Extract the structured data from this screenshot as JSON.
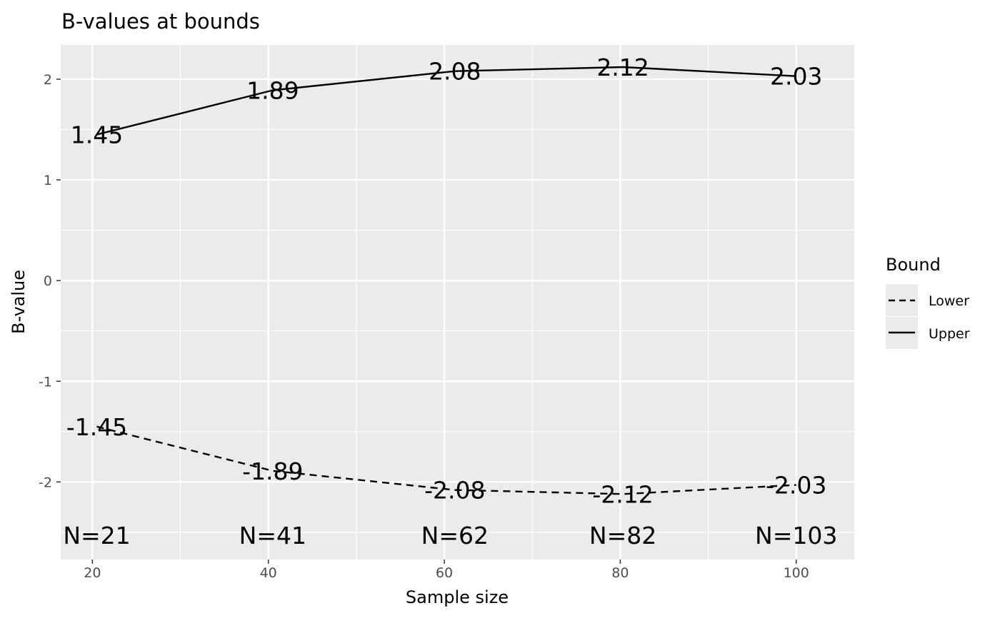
{
  "chart_data": {
    "type": "line",
    "title": "B-values at bounds",
    "xlabel": "Sample size",
    "ylabel": "B-value",
    "xlim": [
      16.4,
      106.6
    ],
    "ylim": [
      -2.77,
      2.34
    ],
    "x_ticks": [
      20,
      40,
      60,
      80,
      100
    ],
    "x_tick_labels": [
      "20",
      "40",
      "60",
      "80",
      "100"
    ],
    "y_ticks": [
      2,
      1,
      0,
      -1,
      -2
    ],
    "y_tick_labels": [
      "2",
      "1",
      "0",
      "-1",
      "-2"
    ],
    "grid": true,
    "background": "#ebebeb",
    "legend": {
      "title": "Bound",
      "position": "right",
      "entries": [
        {
          "label": "Lower",
          "linetype": "dashed"
        },
        {
          "label": "Upper",
          "linetype": "solid"
        }
      ]
    },
    "series": [
      {
        "name": "Lower",
        "linetype": "dashed",
        "color": "#000000",
        "x": [
          20.5,
          40.5,
          61.2,
          80.3,
          100.0
        ],
        "y": [
          -1.45,
          -1.89,
          -2.08,
          -2.12,
          -2.03
        ],
        "labels": [
          "-1.45",
          "-1.89",
          "-2.08",
          "-2.12",
          "-2.03"
        ]
      },
      {
        "name": "Upper",
        "linetype": "solid",
        "color": "#000000",
        "x": [
          20.5,
          40.5,
          61.2,
          80.3,
          100.0
        ],
        "y": [
          1.45,
          1.89,
          2.08,
          2.12,
          2.03
        ],
        "labels": [
          "1.45",
          "1.89",
          "2.08",
          "2.12",
          "2.03"
        ]
      }
    ],
    "annotations": [
      {
        "x": 20.5,
        "y": -2.53,
        "text": "N=21"
      },
      {
        "x": 40.5,
        "y": -2.53,
        "text": "N=41"
      },
      {
        "x": 61.2,
        "y": -2.53,
        "text": "N=62"
      },
      {
        "x": 80.3,
        "y": -2.53,
        "text": "N=82"
      },
      {
        "x": 100.0,
        "y": -2.53,
        "text": "N=103"
      }
    ]
  }
}
